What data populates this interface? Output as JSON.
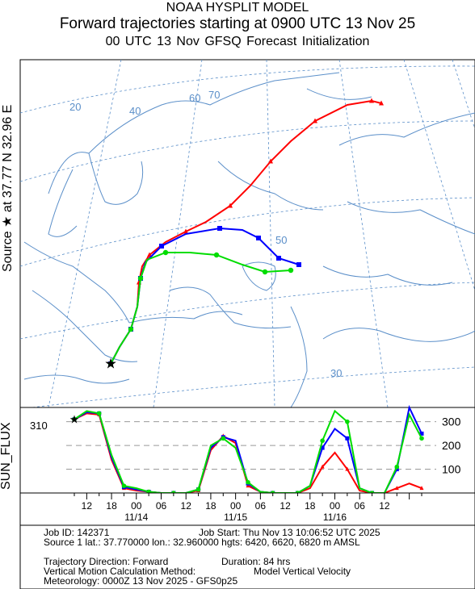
{
  "header": {
    "line1": "NOAA HYSPLIT MODEL",
    "line2": "Forward trajectories starting at 0900 UTC 13 Nov 25",
    "line3": "00 UTC 13 Nov    GFSQ  Forecast Initialization"
  },
  "side_label": "Source ★ at   37.77 N   32.96 E",
  "map": {
    "grid_labels": [
      "20",
      "40",
      "50",
      "60",
      "70",
      "50",
      "30"
    ],
    "source": {
      "lat": 37.77,
      "lon": 32.96
    },
    "trajectories": [
      {
        "color": "#ff0000",
        "height_m_agl": 6420
      },
      {
        "color": "#0000ff",
        "height_m_agl": 6620
      },
      {
        "color": "#00dd00",
        "height_m_agl": 6820
      }
    ]
  },
  "chart_data": {
    "type": "line",
    "ylabel": "SUN_FLUX",
    "ylim": [
      0,
      360
    ],
    "yticks": [
      100,
      200,
      300
    ],
    "start_value_label": "310",
    "x_hours_since_start": [
      0,
      3,
      6,
      9,
      12,
      15,
      18,
      21,
      24,
      27,
      30,
      33,
      36,
      39,
      42,
      45,
      48,
      51,
      54,
      57,
      60,
      63,
      66,
      69,
      72,
      75,
      78,
      81,
      84
    ],
    "series": [
      {
        "color": "#ff0000",
        "values": [
          310,
          335,
          330,
          140,
          20,
          10,
          5,
          0,
          0,
          0,
          10,
          180,
          240,
          210,
          30,
          5,
          0,
          0,
          0,
          20,
          110,
          170,
          100,
          10,
          0,
          0,
          20,
          40,
          20
        ]
      },
      {
        "color": "#0000ff",
        "values": [
          310,
          340,
          335,
          150,
          25,
          15,
          5,
          0,
          0,
          0,
          15,
          190,
          235,
          220,
          40,
          5,
          0,
          0,
          0,
          30,
          190,
          270,
          230,
          20,
          0,
          0,
          100,
          380,
          250
        ]
      },
      {
        "color": "#00dd00",
        "values": [
          310,
          345,
          335,
          160,
          30,
          20,
          5,
          0,
          0,
          0,
          15,
          200,
          230,
          190,
          45,
          5,
          0,
          0,
          0,
          30,
          220,
          345,
          300,
          20,
          0,
          0,
          110,
          330,
          230
        ]
      }
    ],
    "time_ticks": [
      "12",
      "18",
      "00",
      "06",
      "12",
      "18",
      "00",
      "06",
      "12",
      "18",
      "00",
      "06",
      "12"
    ],
    "date_labels": [
      "11/14",
      "11/15",
      "11/16"
    ]
  },
  "footer": {
    "job_id": "Job ID: 142371",
    "job_start": "Job Start: Thu Nov 13 10:06:52 UTC 2025",
    "source1": "Source 1 lat.: 37.770000  lon.: 32.960000  hgts: 6420, 6620, 6820 m AMSL",
    "direction": "Trajectory Direction: Forward",
    "duration": "Duration: 84 hrs",
    "vertical": "Vertical Motion Calculation Method:",
    "vertical_value": "Model Vertical Velocity",
    "meteorology": "Meteorology: 0000Z 13 Nov 2025 - GFS0p25"
  }
}
